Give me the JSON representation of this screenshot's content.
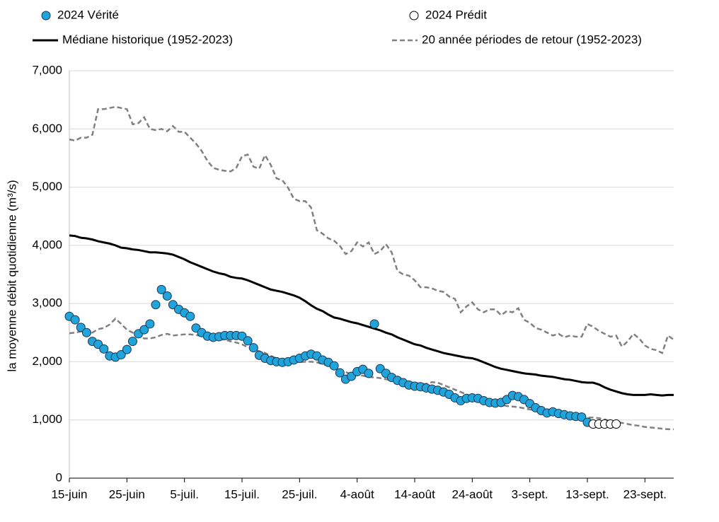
{
  "chart_data": {
    "type": "line",
    "y_label": "la moyenne débit quotidienne (m³/s)",
    "categories": [
      "15-juin",
      null,
      null,
      null,
      null,
      null,
      null,
      null,
      null,
      null,
      "25-juin",
      null,
      null,
      null,
      null,
      null,
      null,
      null,
      null,
      null,
      "5-juil.",
      null,
      null,
      null,
      null,
      null,
      null,
      null,
      null,
      null,
      "15-juil.",
      null,
      null,
      null,
      null,
      null,
      null,
      null,
      null,
      null,
      "25-juil.",
      null,
      null,
      null,
      null,
      null,
      null,
      null,
      null,
      null,
      "4-août",
      null,
      null,
      null,
      null,
      null,
      null,
      null,
      null,
      null,
      "14-août",
      null,
      null,
      null,
      null,
      null,
      null,
      null,
      null,
      null,
      "24-août",
      null,
      null,
      null,
      null,
      null,
      null,
      null,
      null,
      null,
      "3-sept.",
      null,
      null,
      null,
      null,
      null,
      null,
      null,
      null,
      null,
      "13-sept.",
      null,
      null,
      null,
      null,
      null,
      null,
      null,
      null,
      null,
      "23-sept.",
      null,
      null,
      null,
      null,
      null
    ],
    "ylim": [
      0,
      7000
    ],
    "yticks": [
      0,
      {
        "value": 1000,
        "label": "1,000"
      },
      {
        "value": 2000,
        "label": "2,000"
      },
      {
        "value": 3000,
        "label": "3,000"
      },
      {
        "value": 4000,
        "label": "4,000"
      },
      {
        "value": 5000,
        "label": "5,000"
      },
      {
        "value": 6000,
        "label": "6,000"
      },
      {
        "value": 7000,
        "label": "7,000"
      }
    ],
    "grid": true,
    "series": [
      {
        "name": "2024 Vérité",
        "kind": "marker",
        "color": "#1fa5dc",
        "edge": "#1b3550",
        "values": [
          2780,
          2720,
          2590,
          2500,
          2350,
          2300,
          2220,
          2100,
          2080,
          2120,
          2210,
          2350,
          2480,
          2550,
          2650,
          2980,
          3240,
          3130,
          2980,
          2900,
          2840,
          2780,
          2580,
          2500,
          2440,
          2420,
          2430,
          2450,
          2450,
          2450,
          2440,
          2360,
          2240,
          2110,
          2060,
          2020,
          2000,
          1990,
          2000,
          2030,
          2060,
          2100,
          2130,
          2100,
          2030,
          1990,
          1930,
          1810,
          1700,
          1750,
          1830,
          1870,
          1800,
          2650,
          1880,
          1800,
          1730,
          1680,
          1640,
          1600,
          1580,
          1570,
          1550,
          1530,
          1510,
          1480,
          1440,
          1380,
          1330,
          1370,
          1380,
          1370,
          1330,
          1300,
          1290,
          1300,
          1350,
          1420,
          1400,
          1350,
          1280,
          1210,
          1160,
          1120,
          1140,
          1110,
          1090,
          1070,
          1060,
          1050,
          960,
          null,
          null,
          null,
          null,
          null,
          null,
          null,
          null,
          null,
          null,
          null,
          null,
          null,
          null,
          null
        ]
      },
      {
        "name": "2024 Prédit",
        "kind": "marker",
        "color": "#ffffff",
        "edge": "#000000",
        "values": [
          null,
          null,
          null,
          null,
          null,
          null,
          null,
          null,
          null,
          null,
          null,
          null,
          null,
          null,
          null,
          null,
          null,
          null,
          null,
          null,
          null,
          null,
          null,
          null,
          null,
          null,
          null,
          null,
          null,
          null,
          null,
          null,
          null,
          null,
          null,
          null,
          null,
          null,
          null,
          null,
          null,
          null,
          null,
          null,
          null,
          null,
          null,
          null,
          null,
          null,
          null,
          null,
          null,
          null,
          null,
          null,
          null,
          null,
          null,
          null,
          null,
          null,
          null,
          null,
          null,
          null,
          null,
          null,
          null,
          null,
          null,
          null,
          null,
          null,
          null,
          null,
          null,
          null,
          null,
          null,
          null,
          null,
          null,
          null,
          null,
          null,
          null,
          null,
          null,
          null,
          null,
          930,
          930,
          930,
          930,
          930,
          null,
          null,
          null,
          null,
          null,
          null,
          null,
          null,
          null,
          null
        ]
      },
      {
        "name": "Médiane historique (1952-2023)",
        "kind": "line",
        "color": "#000000",
        "values": [
          4170,
          4160,
          4130,
          4120,
          4100,
          4070,
          4050,
          4030,
          4000,
          3960,
          3950,
          3930,
          3920,
          3900,
          3880,
          3880,
          3870,
          3860,
          3840,
          3800,
          3760,
          3710,
          3670,
          3630,
          3590,
          3550,
          3520,
          3500,
          3460,
          3440,
          3430,
          3400,
          3360,
          3320,
          3280,
          3240,
          3220,
          3200,
          3170,
          3140,
          3100,
          3040,
          2970,
          2910,
          2870,
          2810,
          2760,
          2740,
          2710,
          2680,
          2660,
          2630,
          2600,
          2570,
          2540,
          2500,
          2470,
          2420,
          2380,
          2340,
          2300,
          2280,
          2240,
          2210,
          2180,
          2150,
          2130,
          2110,
          2090,
          2070,
          2060,
          2030,
          1990,
          1950,
          1910,
          1880,
          1860,
          1840,
          1820,
          1800,
          1790,
          1780,
          1760,
          1750,
          1740,
          1720,
          1700,
          1690,
          1670,
          1650,
          1640,
          1640,
          1610,
          1560,
          1520,
          1490,
          1460,
          1440,
          1430,
          1430,
          1430,
          1440,
          1430,
          1420,
          1430,
          1430
        ]
      },
      {
        "name": "20 année périodes de retour (1952-2023)",
        "kind": "dashed",
        "color": "#808080",
        "upper": [
          5820,
          5800,
          5850,
          5850,
          5900,
          6340,
          6340,
          6360,
          6380,
          6360,
          6340,
          6080,
          6100,
          6200,
          6000,
          5980,
          6000,
          5960,
          6050,
          5950,
          5950,
          5850,
          5750,
          5620,
          5450,
          5330,
          5300,
          5280,
          5270,
          5330,
          5530,
          5560,
          5350,
          5320,
          5550,
          5380,
          5150,
          5120,
          4990,
          4800,
          4760,
          4760,
          4650,
          4260,
          4200,
          4120,
          4080,
          3990,
          3850,
          3900,
          4050,
          3980,
          4050,
          3850,
          3900,
          4020,
          3880,
          3560,
          3500,
          3480,
          3400,
          3280,
          3280,
          3260,
          3220,
          3200,
          3120,
          3080,
          2850,
          2950,
          3020,
          2900,
          2850,
          2900,
          2900,
          2800,
          2870,
          2850,
          2920,
          2720,
          2670,
          2580,
          2550,
          2500,
          2450,
          2480,
          2420,
          2450,
          2430,
          2430,
          2650,
          2600,
          2530,
          2480,
          2430,
          2450,
          2260,
          2350,
          2480,
          2400,
          2280,
          2220,
          2200,
          2150,
          2450,
          2380
        ],
        "lower": [
          2490,
          2500,
          2520,
          2550,
          2500,
          2560,
          2580,
          2640,
          2740,
          2650,
          2550,
          2500,
          2440,
          2400,
          2400,
          2420,
          2460,
          2480,
          2450,
          2460,
          2470,
          2470,
          2460,
          2440,
          2420,
          2400,
          2390,
          2380,
          2350,
          2330,
          2300,
          2250,
          2220,
          2180,
          2150,
          2100,
          2060,
          2030,
          2010,
          2000,
          1990,
          2000,
          2000,
          1990,
          1960,
          1930,
          1900,
          1860,
          1820,
          1790,
          1780,
          1760,
          1740,
          1730,
          1720,
          1700,
          1680,
          1670,
          1660,
          1650,
          1640,
          1620,
          1620,
          1650,
          1640,
          1600,
          1560,
          1520,
          1480,
          1440,
          1400,
          1390,
          1360,
          1320,
          1280,
          1260,
          1240,
          1230,
          1220,
          1200,
          1180,
          1170,
          1150,
          1130,
          1100,
          1090,
          1070,
          1060,
          1050,
          1040,
          1040,
          1040,
          1030,
          1010,
          980,
          960,
          950,
          930,
          910,
          900,
          880,
          870,
          860,
          850,
          840,
          840
        ]
      }
    ]
  }
}
